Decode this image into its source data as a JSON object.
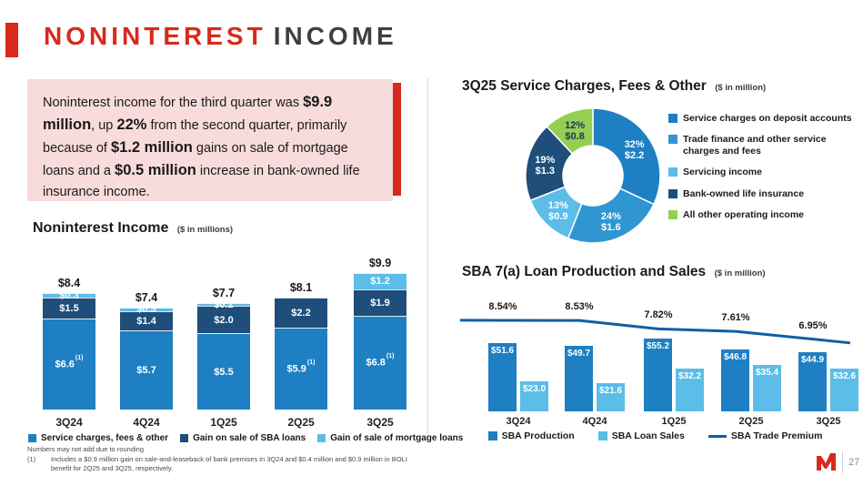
{
  "header": {
    "title_red": "NONINTEREST",
    "title_dark": "INCOME"
  },
  "callout": {
    "segments": [
      {
        "text": "Noninterest income for the third quarter was ",
        "bold": false
      },
      {
        "text": "$9.9 million",
        "bold": true
      },
      {
        "text": ", up ",
        "bold": false
      },
      {
        "text": "22%",
        "bold": true
      },
      {
        "text": " from the second quarter, primarily because of ",
        "bold": false
      },
      {
        "text": "$1.2 million",
        "bold": true
      },
      {
        "text": " gains on sale of mortgage loans and a ",
        "bold": false
      },
      {
        "text": "$0.5 million",
        "bold": true
      },
      {
        "text": " increase in bank-owned life insurance income.",
        "bold": false
      }
    ]
  },
  "colors": {
    "red": "#D9291C",
    "pink": "#F8DCDC",
    "blue": "#1E7FC2",
    "navy": "#1E4E79",
    "light_blue": "#5BBDE8",
    "mid_blue": "#2F96D2",
    "green": "#95CE52",
    "line_blue": "#0F5FA8"
  },
  "chart_data": [
    {
      "name": "noninterest_income",
      "type": "bar",
      "title": "Noninterest Income",
      "subtitle": "($ in millions)",
      "categories": [
        "3Q24",
        "4Q24",
        "1Q25",
        "2Q25",
        "3Q25"
      ],
      "totals": [
        "$8.4",
        "$7.4",
        "$7.7",
        "$8.1",
        "$9.9"
      ],
      "series": [
        {
          "name": "Service charges, fees & other",
          "color_key": "blue",
          "values": [
            6.6,
            5.7,
            5.5,
            5.9,
            6.8
          ],
          "labels": [
            "$6.6",
            "$5.7",
            "$5.5",
            "$5.9",
            "$6.8"
          ],
          "sups": [
            "(1)",
            "",
            "",
            "(1)",
            "(1)"
          ]
        },
        {
          "name": "Gain on sale of SBA loans",
          "color_key": "navy",
          "values": [
            1.5,
            1.4,
            2.0,
            2.2,
            1.9
          ],
          "labels": [
            "$1.5",
            "$1.4",
            "$2.0",
            "$2.2",
            "$1.9"
          ],
          "sups": [
            "",
            "",
            "",
            "",
            ""
          ]
        },
        {
          "name": "Gain of sale of mortgage loans",
          "color_key": "light_blue",
          "values": [
            0.3,
            0.3,
            0.2,
            0,
            1.2
          ],
          "labels": [
            "$0.3",
            "$0.3",
            "$0.2",
            "",
            "$1.2"
          ],
          "sups": [
            "",
            "",
            "",
            "",
            ""
          ]
        }
      ]
    },
    {
      "name": "service_charges_donut",
      "type": "pie",
      "title": "3Q25 Service Charges, Fees & Other",
      "subtitle": "($ in million)",
      "slices": [
        {
          "label": "Service charges on deposit accounts",
          "pct": 32,
          "amount": "$2.2",
          "color_key": "blue",
          "text": "light"
        },
        {
          "label": "Trade finance and other service charges and fees",
          "pct": 24,
          "amount": "$1.6",
          "color_key": "mid_blue",
          "text": "light"
        },
        {
          "label": "Servicing income",
          "pct": 13,
          "amount": "$0.9",
          "color_key": "light_blue",
          "text": "light"
        },
        {
          "label": "Bank-owned life insurance",
          "pct": 19,
          "amount": "$1.3",
          "color_key": "navy",
          "text": "light"
        },
        {
          "label": "All other operating income",
          "pct": 12,
          "amount": "$0.8",
          "color_key": "green",
          "text": "dark"
        }
      ]
    },
    {
      "name": "sba_loans",
      "type": "bar",
      "title": "SBA 7(a) Loan Production and Sales",
      "subtitle": "($ in million)",
      "categories": [
        "3Q24",
        "4Q24",
        "1Q25",
        "2Q25",
        "3Q25"
      ],
      "series": [
        {
          "name": "SBA Production",
          "color_key": "blue",
          "values": [
            51.6,
            49.7,
            55.2,
            46.8,
            44.9
          ],
          "labels": [
            "$51.6",
            "$49.7",
            "$55.2",
            "$46.8",
            "$44.9"
          ]
        },
        {
          "name": "SBA Loan Sales",
          "color_key": "light_blue",
          "values": [
            23.0,
            21.6,
            32.2,
            35.4,
            32.6
          ],
          "labels": [
            "$23.0",
            "$21.6",
            "$32.2",
            "$35.4",
            "$32.6"
          ]
        }
      ],
      "line": {
        "name": "SBA Trade Premium",
        "color_key": "line_blue",
        "values": [
          8.54,
          8.53,
          7.82,
          7.61,
          6.95
        ],
        "labels": [
          "8.54%",
          "8.53%",
          "7.82%",
          "7.61%",
          "6.95%"
        ]
      }
    }
  ],
  "footnotes": {
    "line1": "Numbers may not add due to rounding",
    "marker": "(1)",
    "line2": "Includes a $0.9 million gain on sale-and-leaseback of bank premises in 3Q24 and $0.4 million and $0.9 million in BOLI benefit for 2Q25 and 3Q25, respectively."
  },
  "footer": {
    "page_number": "27"
  }
}
